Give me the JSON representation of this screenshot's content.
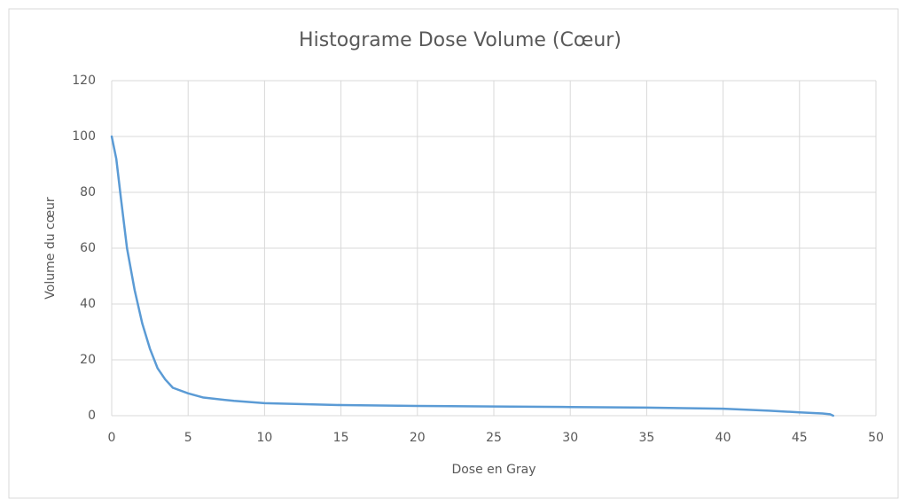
{
  "chart_data": {
    "type": "line",
    "title": "Histograme Dose Volume (Cœur)",
    "xlabel": "Dose en Gray",
    "ylabel": "Volume du cœur",
    "series": [
      {
        "name": "Cœur",
        "color": "#5b9bd5",
        "x": [
          0,
          0.3,
          0.6,
          1,
          1.5,
          2,
          2.5,
          3,
          3.5,
          4,
          5,
          6,
          8,
          10,
          15,
          20,
          25,
          30,
          35,
          40,
          43,
          45,
          46.5,
          47,
          47.2
        ],
        "values": [
          100,
          92,
          78,
          60,
          45,
          33,
          24,
          17,
          13,
          10,
          8,
          6.5,
          5.3,
          4.5,
          3.8,
          3.5,
          3.3,
          3.1,
          2.9,
          2.5,
          1.8,
          1.2,
          0.8,
          0.5,
          0
        ]
      }
    ],
    "xlim": [
      0,
      50
    ],
    "xticks": [
      0,
      5,
      10,
      15,
      20,
      25,
      30,
      35,
      40,
      45,
      50
    ],
    "ylim": [
      0,
      120
    ],
    "yticks": [
      0,
      20,
      40,
      60,
      80,
      100,
      120
    ],
    "grid": true
  }
}
